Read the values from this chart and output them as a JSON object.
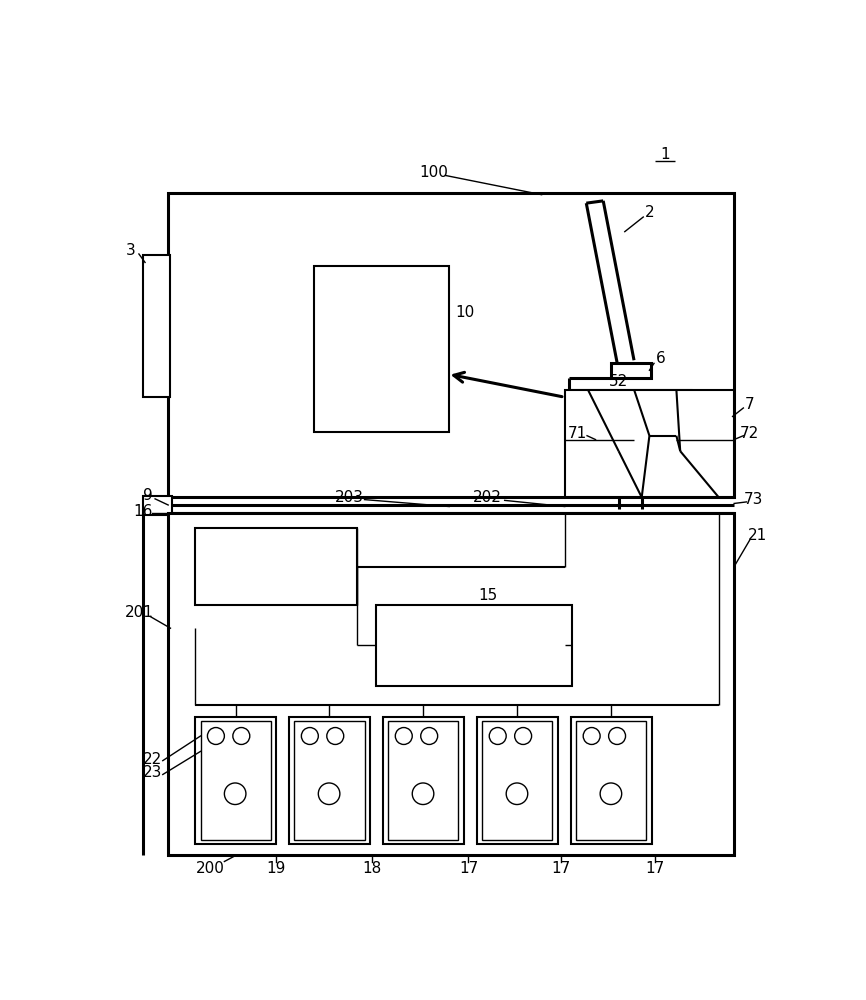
{
  "fig_width": 8.66,
  "fig_height": 10.0,
  "dpi": 100,
  "bg_color": "#ffffff",
  "lw": 1.5,
  "lw_thin": 1.0,
  "lw_thick": 2.2,
  "label_fs": 11
}
